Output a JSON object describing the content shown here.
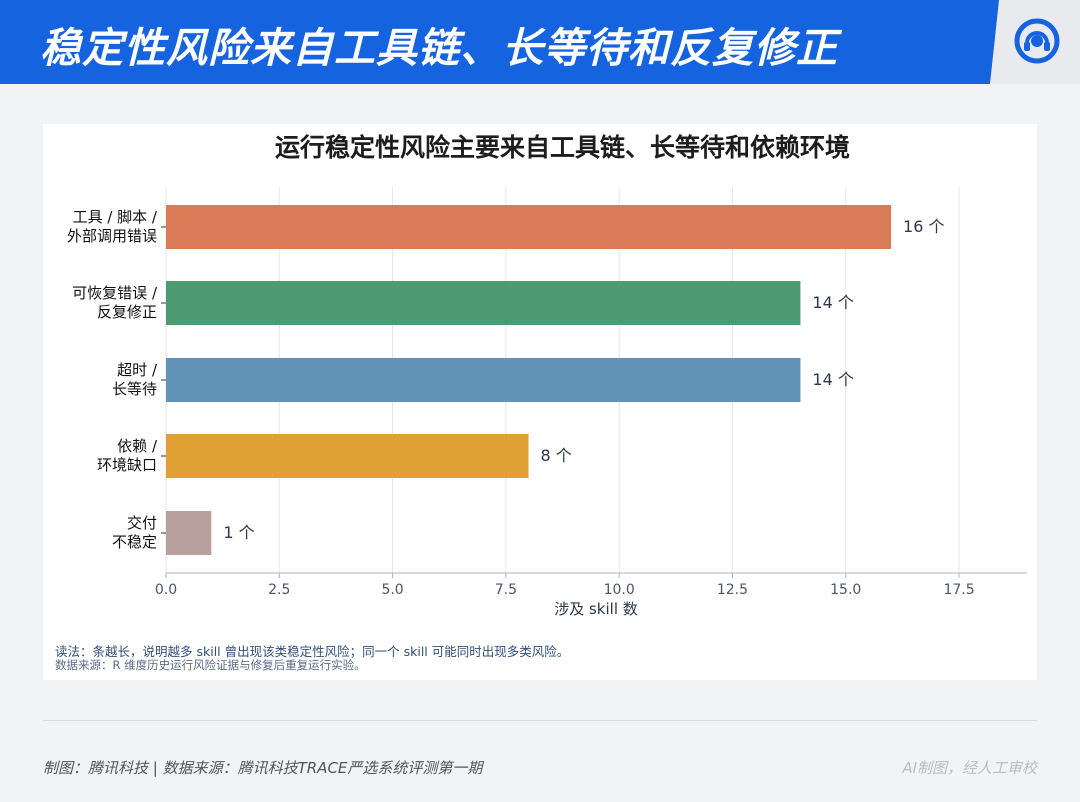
{
  "header": {
    "title": "稳定性风险来自工具链、长等待和反复修正",
    "logo_icon": "headset-icon",
    "accent_color": "#1663e0"
  },
  "chart_data": {
    "type": "bar",
    "orientation": "horizontal",
    "title": "运行稳定性风险主要来自工具链、长等待和依赖环境",
    "xlabel": "涉及 skill 数",
    "ylabel": "",
    "xlim": [
      0,
      19
    ],
    "xticks": [
      "0.0",
      "2.5",
      "5.0",
      "7.5",
      "10.0",
      "12.5",
      "15.0",
      "17.5"
    ],
    "grid": "vertical",
    "categories": [
      [
        "工具 / 脚本 /",
        "外部调用错误"
      ],
      [
        "可恢复错误 /",
        "反复修正"
      ],
      [
        "超时 /",
        "长等待"
      ],
      [
        "依赖 /",
        "环境缺口"
      ],
      [
        "交付",
        "不稳定"
      ]
    ],
    "values": [
      16,
      14,
      14,
      8,
      1
    ],
    "data_labels": [
      "16 个",
      "14 个",
      "14 个",
      "8 个",
      "1 个"
    ],
    "colors": [
      "#d97b56",
      "#4e9a72",
      "#6193b8",
      "#e1a036",
      "#b8a09f"
    ]
  },
  "notes": {
    "reading": "读法：条越长，说明越多 skill 曾出现该类稳定性风险；同一个 skill 可能同时出现多类风险。",
    "source": "数据来源：R 维度历史运行风险证据与修复后重复运行实验。"
  },
  "footer": {
    "left": "制图：腾讯科技 | 数据来源：腾讯科技TRACE严选系统评测第一期",
    "right": "AI制图，经人工审校"
  }
}
